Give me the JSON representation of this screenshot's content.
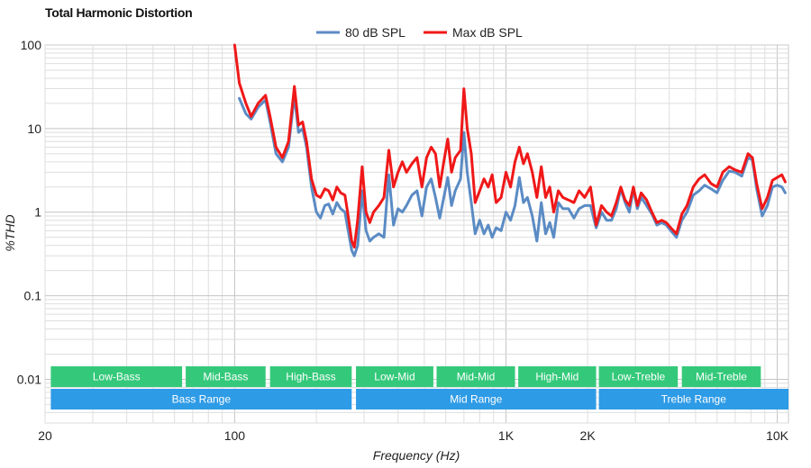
{
  "chart_data": {
    "type": "line",
    "title": "Total Harmonic Distortion",
    "xlabel": "Frequency (Hz)",
    "ylabel": "%THD",
    "x_scale": "log",
    "y_scale": "log",
    "xlim": [
      20,
      11000
    ],
    "ylim": [
      0.003,
      100
    ],
    "grid": true,
    "legend_position": "top-center",
    "x_ticks": [
      {
        "value": 20,
        "label": "20"
      },
      {
        "value": 100,
        "label": "100"
      },
      {
        "value": 1000,
        "label": "1K"
      },
      {
        "value": 2000,
        "label": "2K"
      },
      {
        "value": 10000,
        "label": "10K"
      }
    ],
    "y_ticks": [
      {
        "value": 100,
        "label": "100"
      },
      {
        "value": 10,
        "label": "10"
      },
      {
        "value": 1,
        "label": "1"
      },
      {
        "value": 0.1,
        "label": "0.1"
      },
      {
        "value": 0.01,
        "label": "0.01"
      }
    ],
    "bands_row1": [
      {
        "label": "Low-Bass",
        "from": 21,
        "to": 64,
        "color": "#34c97a"
      },
      {
        "label": "Mid-Bass",
        "from": 66,
        "to": 130,
        "color": "#34c97a"
      },
      {
        "label": "High-Bass",
        "from": 135,
        "to": 270,
        "color": "#34c97a"
      },
      {
        "label": "Low-Mid",
        "from": 280,
        "to": 540,
        "color": "#34c97a"
      },
      {
        "label": "Mid-Mid",
        "from": 555,
        "to": 1080,
        "color": "#34c97a"
      },
      {
        "label": "High-Mid",
        "from": 1110,
        "to": 2150,
        "color": "#34c97a"
      },
      {
        "label": "Low-Treble",
        "from": 2200,
        "to": 4300,
        "color": "#34c97a"
      },
      {
        "label": "Mid-Treble",
        "from": 4450,
        "to": 8700,
        "color": "#34c97a"
      }
    ],
    "bands_row2": [
      {
        "label": "Bass Range",
        "from": 21,
        "to": 270,
        "color": "#2e9be6"
      },
      {
        "label": "Mid Range",
        "from": 280,
        "to": 2150,
        "color": "#2e9be6"
      },
      {
        "label": "Treble Range",
        "from": 2200,
        "to": 11000,
        "color": "#2e9be6"
      }
    ],
    "series": [
      {
        "name": "80 dB SPL",
        "color": "#5b8bc4",
        "points": [
          [
            104,
            23
          ],
          [
            110,
            15
          ],
          [
            115,
            13
          ],
          [
            122,
            18
          ],
          [
            130,
            22
          ],
          [
            135,
            12
          ],
          [
            142,
            5
          ],
          [
            150,
            4
          ],
          [
            158,
            6
          ],
          [
            166,
            25
          ],
          [
            172,
            9
          ],
          [
            178,
            10
          ],
          [
            184,
            6
          ],
          [
            192,
            2
          ],
          [
            200,
            1
          ],
          [
            207,
            0.85
          ],
          [
            215,
            1.2
          ],
          [
            222,
            1.25
          ],
          [
            230,
            0.95
          ],
          [
            238,
            1.3
          ],
          [
            246,
            1.1
          ],
          [
            255,
            1.0
          ],
          [
            262,
            0.6
          ],
          [
            270,
            0.35
          ],
          [
            276,
            0.3
          ],
          [
            284,
            0.4
          ],
          [
            295,
            1.8
          ],
          [
            305,
            0.6
          ],
          [
            315,
            0.45
          ],
          [
            325,
            0.5
          ],
          [
            340,
            0.55
          ],
          [
            355,
            0.5
          ],
          [
            370,
            2.8
          ],
          [
            385,
            0.7
          ],
          [
            400,
            1.1
          ],
          [
            415,
            1.0
          ],
          [
            430,
            1.2
          ],
          [
            450,
            1.6
          ],
          [
            470,
            1.8
          ],
          [
            490,
            0.9
          ],
          [
            510,
            2.0
          ],
          [
            530,
            2.5
          ],
          [
            550,
            1.5
          ],
          [
            570,
            0.85
          ],
          [
            590,
            1.5
          ],
          [
            610,
            2.6
          ],
          [
            630,
            1.2
          ],
          [
            650,
            1.8
          ],
          [
            680,
            2.5
          ],
          [
            700,
            9.0
          ],
          [
            720,
            3.0
          ],
          [
            745,
            1.3
          ],
          [
            770,
            0.55
          ],
          [
            800,
            0.8
          ],
          [
            830,
            0.55
          ],
          [
            860,
            0.7
          ],
          [
            890,
            0.5
          ],
          [
            920,
            0.65
          ],
          [
            960,
            0.6
          ],
          [
            1000,
            1.0
          ],
          [
            1040,
            0.8
          ],
          [
            1080,
            1.2
          ],
          [
            1120,
            2.6
          ],
          [
            1160,
            1.3
          ],
          [
            1200,
            1.5
          ],
          [
            1250,
            0.9
          ],
          [
            1300,
            0.45
          ],
          [
            1350,
            1.3
          ],
          [
            1400,
            0.55
          ],
          [
            1450,
            0.75
          ],
          [
            1500,
            0.5
          ],
          [
            1560,
            1.3
          ],
          [
            1620,
            1.1
          ],
          [
            1700,
            1.1
          ],
          [
            1780,
            0.85
          ],
          [
            1860,
            1.1
          ],
          [
            1950,
            1.2
          ],
          [
            2050,
            1.2
          ],
          [
            2150,
            0.65
          ],
          [
            2250,
            1.0
          ],
          [
            2350,
            0.8
          ],
          [
            2450,
            0.8
          ],
          [
            2550,
            1.1
          ],
          [
            2650,
            1.9
          ],
          [
            2750,
            1.3
          ],
          [
            2850,
            1.0
          ],
          [
            2950,
            1.9
          ],
          [
            3050,
            1.1
          ],
          [
            3150,
            1.5
          ],
          [
            3300,
            1.2
          ],
          [
            3450,
            0.95
          ],
          [
            3600,
            0.7
          ],
          [
            3750,
            0.75
          ],
          [
            3900,
            0.7
          ],
          [
            4050,
            0.6
          ],
          [
            4250,
            0.5
          ],
          [
            4450,
            0.8
          ],
          [
            4650,
            1.0
          ],
          [
            4900,
            1.6
          ],
          [
            5150,
            1.8
          ],
          [
            5400,
            2.1
          ],
          [
            5700,
            1.9
          ],
          [
            6000,
            1.7
          ],
          [
            6300,
            2.4
          ],
          [
            6650,
            3.1
          ],
          [
            7000,
            3.0
          ],
          [
            7400,
            2.7
          ],
          [
            7800,
            4.5
          ],
          [
            8100,
            4.2
          ],
          [
            8400,
            1.9
          ],
          [
            8800,
            0.9
          ],
          [
            9200,
            1.2
          ],
          [
            9600,
            2.0
          ],
          [
            10000,
            2.1
          ],
          [
            10400,
            2.0
          ],
          [
            10700,
            1.7
          ]
        ]
      },
      {
        "name": "Max dB SPL",
        "color": "#f01818",
        "points": [
          [
            100,
            100
          ],
          [
            104,
            35
          ],
          [
            110,
            20
          ],
          [
            115,
            14
          ],
          [
            122,
            20
          ],
          [
            130,
            25
          ],
          [
            135,
            14
          ],
          [
            142,
            6
          ],
          [
            150,
            4.5
          ],
          [
            158,
            7
          ],
          [
            166,
            32
          ],
          [
            172,
            11
          ],
          [
            178,
            12
          ],
          [
            184,
            7
          ],
          [
            192,
            2.5
          ],
          [
            200,
            1.6
          ],
          [
            207,
            1.5
          ],
          [
            215,
            1.9
          ],
          [
            222,
            1.8
          ],
          [
            230,
            1.4
          ],
          [
            238,
            2.0
          ],
          [
            246,
            1.7
          ],
          [
            255,
            1.6
          ],
          [
            262,
            0.9
          ],
          [
            270,
            0.45
          ],
          [
            276,
            0.38
          ],
          [
            284,
            0.8
          ],
          [
            295,
            3.5
          ],
          [
            305,
            1.0
          ],
          [
            315,
            0.75
          ],
          [
            325,
            1.0
          ],
          [
            340,
            1.2
          ],
          [
            355,
            1.5
          ],
          [
            370,
            5.5
          ],
          [
            385,
            2.0
          ],
          [
            400,
            3.0
          ],
          [
            415,
            4.0
          ],
          [
            430,
            3.0
          ],
          [
            450,
            3.8
          ],
          [
            470,
            4.5
          ],
          [
            490,
            2.0
          ],
          [
            510,
            4.5
          ],
          [
            530,
            6.0
          ],
          [
            550,
            5.0
          ],
          [
            570,
            2.0
          ],
          [
            590,
            4.0
          ],
          [
            610,
            7.5
          ],
          [
            630,
            3.0
          ],
          [
            650,
            4.5
          ],
          [
            680,
            5.5
          ],
          [
            700,
            30.0
          ],
          [
            720,
            10.0
          ],
          [
            745,
            5.0
          ],
          [
            770,
            1.3
          ],
          [
            800,
            1.8
          ],
          [
            830,
            2.5
          ],
          [
            860,
            2.0
          ],
          [
            890,
            2.8
          ],
          [
            920,
            1.3
          ],
          [
            960,
            1.5
          ],
          [
            1000,
            3.0
          ],
          [
            1040,
            2.0
          ],
          [
            1080,
            4.0
          ],
          [
            1120,
            6.0
          ],
          [
            1160,
            3.8
          ],
          [
            1200,
            5.0
          ],
          [
            1250,
            3.0
          ],
          [
            1300,
            1.5
          ],
          [
            1350,
            3.5
          ],
          [
            1400,
            1.5
          ],
          [
            1450,
            2.0
          ],
          [
            1500,
            1.0
          ],
          [
            1560,
            1.8
          ],
          [
            1620,
            1.5
          ],
          [
            1700,
            1.4
          ],
          [
            1780,
            1.3
          ],
          [
            1860,
            1.8
          ],
          [
            1950,
            1.5
          ],
          [
            2050,
            2.0
          ],
          [
            2150,
            0.7
          ],
          [
            2250,
            1.2
          ],
          [
            2350,
            1.0
          ],
          [
            2450,
            0.9
          ],
          [
            2550,
            1.3
          ],
          [
            2650,
            2.0
          ],
          [
            2750,
            1.4
          ],
          [
            2850,
            1.2
          ],
          [
            2950,
            2.0
          ],
          [
            3050,
            1.2
          ],
          [
            3150,
            1.7
          ],
          [
            3300,
            1.4
          ],
          [
            3450,
            1.0
          ],
          [
            3600,
            0.75
          ],
          [
            3750,
            0.8
          ],
          [
            3900,
            0.75
          ],
          [
            4050,
            0.65
          ],
          [
            4250,
            0.55
          ],
          [
            4450,
            0.95
          ],
          [
            4650,
            1.2
          ],
          [
            4900,
            2.0
          ],
          [
            5150,
            2.5
          ],
          [
            5400,
            2.8
          ],
          [
            5700,
            2.2
          ],
          [
            6000,
            2.0
          ],
          [
            6300,
            3.0
          ],
          [
            6650,
            3.5
          ],
          [
            7000,
            3.2
          ],
          [
            7400,
            3.0
          ],
          [
            7800,
            5.0
          ],
          [
            8100,
            4.5
          ],
          [
            8400,
            2.2
          ],
          [
            8800,
            1.1
          ],
          [
            9200,
            1.5
          ],
          [
            9600,
            2.4
          ],
          [
            10000,
            2.6
          ],
          [
            10400,
            2.8
          ],
          [
            10700,
            2.3
          ]
        ]
      }
    ]
  }
}
